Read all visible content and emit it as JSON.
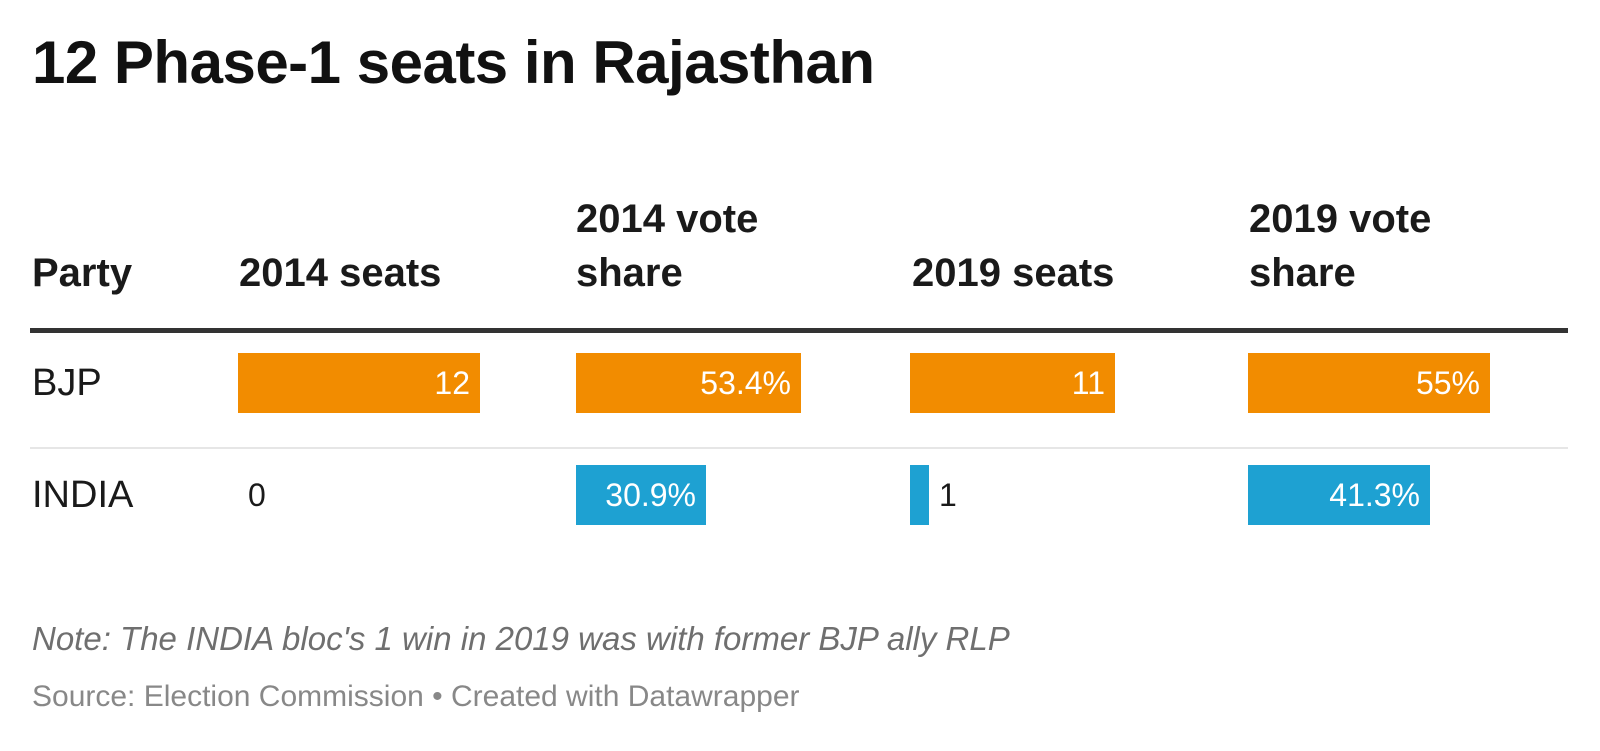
{
  "colors": {
    "BJP": "#F28C00",
    "INDIA": "#1EA1D2"
  },
  "chart_data": {
    "type": "table",
    "title": "12 Phase-1 seats in Rajasthan",
    "columns": [
      "Party",
      "2014 seats",
      "2014 vote share",
      "2019 seats",
      "2019 vote share"
    ],
    "header_lines": {
      "party": [
        "Party"
      ],
      "seats_2014": [
        "2014 seats"
      ],
      "share_2014": [
        "2014 vote",
        "share"
      ],
      "seats_2019": [
        "2019 seats"
      ],
      "share_2019": [
        "2019 vote",
        "share"
      ]
    },
    "rows": [
      {
        "party": "BJP",
        "seats_2014": 12,
        "share_2014": 53.4,
        "seats_2019": 11,
        "share_2019": 55,
        "labels": {
          "seats_2014": "12",
          "share_2014": "53.4%",
          "seats_2019": "11",
          "share_2019": "55%"
        }
      },
      {
        "party": "INDIA",
        "seats_2014": 0,
        "share_2014": 30.9,
        "seats_2019": 1,
        "share_2019": 41.3,
        "labels": {
          "seats_2014": "0",
          "share_2014": "30.9%",
          "seats_2019": "1",
          "share_2019": "41.3%"
        }
      }
    ],
    "seats_max": 12,
    "share_max": 55,
    "note": "Note: The INDIA bloc's 1 win in 2019 was with former BJP ally RLP",
    "source": "Source: Election Commission • Created with Datawrapper"
  }
}
